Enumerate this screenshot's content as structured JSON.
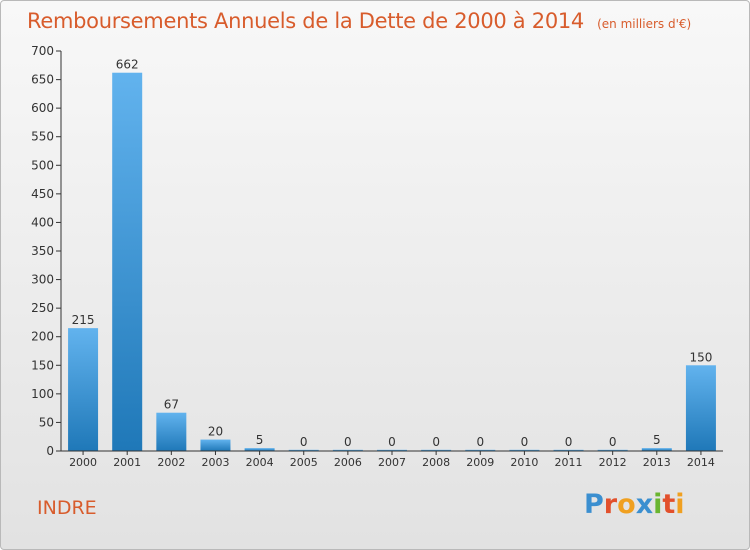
{
  "header": {
    "title": "Remboursements Annuels de la Dette de 2000 à 2014",
    "subtitle": "(en milliers d'€)"
  },
  "footer": {
    "region": "INDRE",
    "logo": {
      "text": "Proxiti",
      "colors": [
        "#3b8fd0",
        "#e2502c",
        "#f0a020",
        "#3b8fd0",
        "#6ab530",
        "#e2502c",
        "#f0a020"
      ]
    }
  },
  "colors": {
    "title": "#d85c2c",
    "bar_light": "#62b3ee",
    "bar_dark": "#1f78b8",
    "axis": "#333333"
  },
  "chart_data": {
    "type": "bar",
    "categories": [
      "2000",
      "2001",
      "2002",
      "2003",
      "2004",
      "2005",
      "2006",
      "2007",
      "2008",
      "2009",
      "2010",
      "2011",
      "2012",
      "2013",
      "2014"
    ],
    "values": [
      215,
      662,
      67,
      20,
      5,
      0,
      0,
      0,
      0,
      0,
      0,
      0,
      0,
      5,
      150
    ],
    "ylim": [
      0,
      700
    ],
    "yticks": [
      0,
      50,
      100,
      150,
      200,
      250,
      300,
      350,
      400,
      450,
      500,
      550,
      600,
      650,
      700
    ],
    "data_labels": true,
    "grid": false,
    "legend": false
  }
}
